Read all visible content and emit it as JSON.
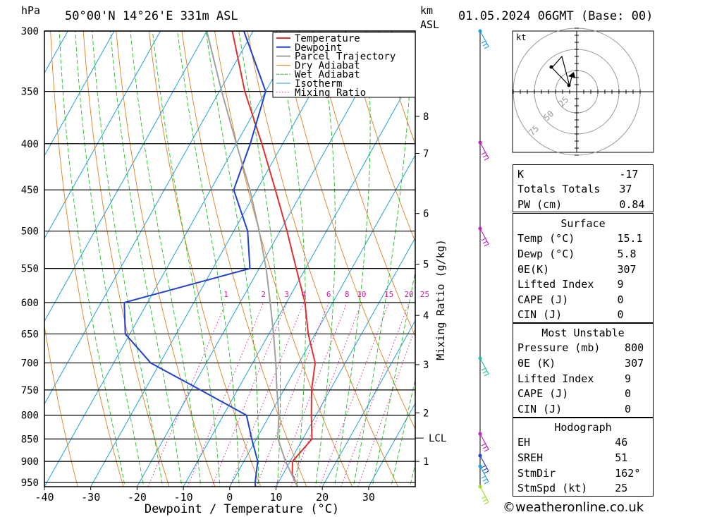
{
  "header": {
    "hpa_label": "hPa",
    "location": "50°00'N 14°26'E 331m ASL",
    "km_label": "km",
    "asl_label": "ASL",
    "datetime": "01.05.2024 06GMT (Base: 00)"
  },
  "chart_data": {
    "type": "line",
    "title": "",
    "xlabel": "Dewpoint / Temperature (°C)",
    "ylabel": "hPa",
    "y2label": "Mixing Ratio (g/kg)",
    "xlim": [
      -40,
      40
    ],
    "ylim": [
      960,
      300
    ],
    "skew_deg_per_log": true,
    "pressure_ticks": [
      300,
      350,
      400,
      450,
      500,
      550,
      600,
      650,
      700,
      750,
      800,
      850,
      900,
      950
    ],
    "temp_ticks": [
      -40,
      -30,
      -20,
      -10,
      0,
      10,
      20,
      30
    ],
    "km_ticks": [
      {
        "label": "8",
        "p": 373
      },
      {
        "label": "7",
        "p": 410
      },
      {
        "label": "6",
        "p": 478
      },
      {
        "label": "5",
        "p": 544
      },
      {
        "label": "4",
        "p": 620
      },
      {
        "label": "3",
        "p": 703
      },
      {
        "label": "2",
        "p": 795
      },
      {
        "label": "1",
        "p": 900
      }
    ],
    "lcl": {
      "label": "LCL",
      "p": 848
    },
    "mixing_ratio_labels": [
      "1",
      "2",
      "3",
      "4",
      "6",
      "8",
      "10",
      "15",
      "20",
      "25"
    ],
    "legend": [
      "Temperature",
      "Dewpoint",
      "Parcel Trajectory",
      "Dry Adiabat",
      "Wet Adiabat",
      "Isotherm",
      "Mixing Ratio"
    ],
    "legend_position": "top-right",
    "series": [
      {
        "name": "Temperature",
        "color": "#e03030",
        "points": [
          [
            965,
            15.1
          ],
          [
            930,
            12.0
          ],
          [
            900,
            10.5
          ],
          [
            850,
            12.0
          ],
          [
            800,
            9.0
          ],
          [
            750,
            6.0
          ],
          [
            700,
            3.5
          ],
          [
            650,
            -1.5
          ],
          [
            600,
            -6.0
          ],
          [
            550,
            -12.0
          ],
          [
            500,
            -18.5
          ],
          [
            450,
            -26.0
          ],
          [
            400,
            -34.5
          ],
          [
            350,
            -44.5
          ],
          [
            300,
            -54.5
          ]
        ]
      },
      {
        "name": "Dewpoint",
        "color": "#2040d0",
        "points": [
          [
            965,
            5.8
          ],
          [
            950,
            5.0
          ],
          [
            900,
            3.0
          ],
          [
            850,
            -1.0
          ],
          [
            800,
            -5.0
          ],
          [
            750,
            -18.0
          ],
          [
            700,
            -32.0
          ],
          [
            650,
            -41.0
          ],
          [
            600,
            -45.0
          ],
          [
            550,
            -22.0
          ],
          [
            500,
            -27.0
          ],
          [
            450,
            -35.0
          ],
          [
            400,
            -37.0
          ],
          [
            350,
            -40.0
          ],
          [
            300,
            -52.0
          ]
        ]
      },
      {
        "name": "Parcel Trajectory",
        "color": "#a0a0a0",
        "points": [
          [
            965,
            15.1
          ],
          [
            900,
            9.0
          ],
          [
            848,
            4.5
          ],
          [
            800,
            2.0
          ],
          [
            750,
            -1.5
          ],
          [
            700,
            -5.0
          ],
          [
            650,
            -9.0
          ],
          [
            600,
            -13.5
          ],
          [
            550,
            -18.5
          ],
          [
            500,
            -24.5
          ],
          [
            450,
            -31.5
          ],
          [
            400,
            -40.0
          ],
          [
            350,
            -49.5
          ],
          [
            300,
            -60.0
          ]
        ]
      }
    ]
  },
  "hodograph": {
    "unit_label": "kt",
    "ring_labels": [
      "25",
      "50",
      "75"
    ]
  },
  "indices": {
    "top": [
      {
        "label": "K",
        "value": "-17"
      },
      {
        "label": "Totals Totals",
        "value": "37"
      },
      {
        "label": "PW (cm)",
        "value": "0.84"
      }
    ],
    "surface": {
      "title": "Surface",
      "rows": [
        {
          "label": "Temp (°C)",
          "value": "15.1"
        },
        {
          "label": "Dewp (°C)",
          "value": "5.8"
        },
        {
          "label": "θE(K)",
          "value": "307"
        },
        {
          "label": "Lifted Index",
          "value": "9"
        },
        {
          "label": "CAPE (J)",
          "value": "0"
        },
        {
          "label": "CIN (J)",
          "value": "0"
        }
      ]
    },
    "unstable": {
      "title": "Most Unstable",
      "rows": [
        {
          "label": "Pressure (mb)",
          "value": "800"
        },
        {
          "label": "θE (K)",
          "value": "307"
        },
        {
          "label": "Lifted Index",
          "value": "9"
        },
        {
          "label": "CAPE (J)",
          "value": "0"
        },
        {
          "label": "CIN (J)",
          "value": "0"
        }
      ]
    },
    "hodo": {
      "title": "Hodograph",
      "rows": [
        {
          "label": "EH",
          "value": "46"
        },
        {
          "label": "SREH",
          "value": "51"
        },
        {
          "label": "StmDir",
          "value": "162°"
        },
        {
          "label": "StmSpd (kt)",
          "value": "25"
        }
      ]
    }
  },
  "footer": {
    "copyright_icon": "copyright-icon",
    "site": "weatheronline.co.uk"
  }
}
